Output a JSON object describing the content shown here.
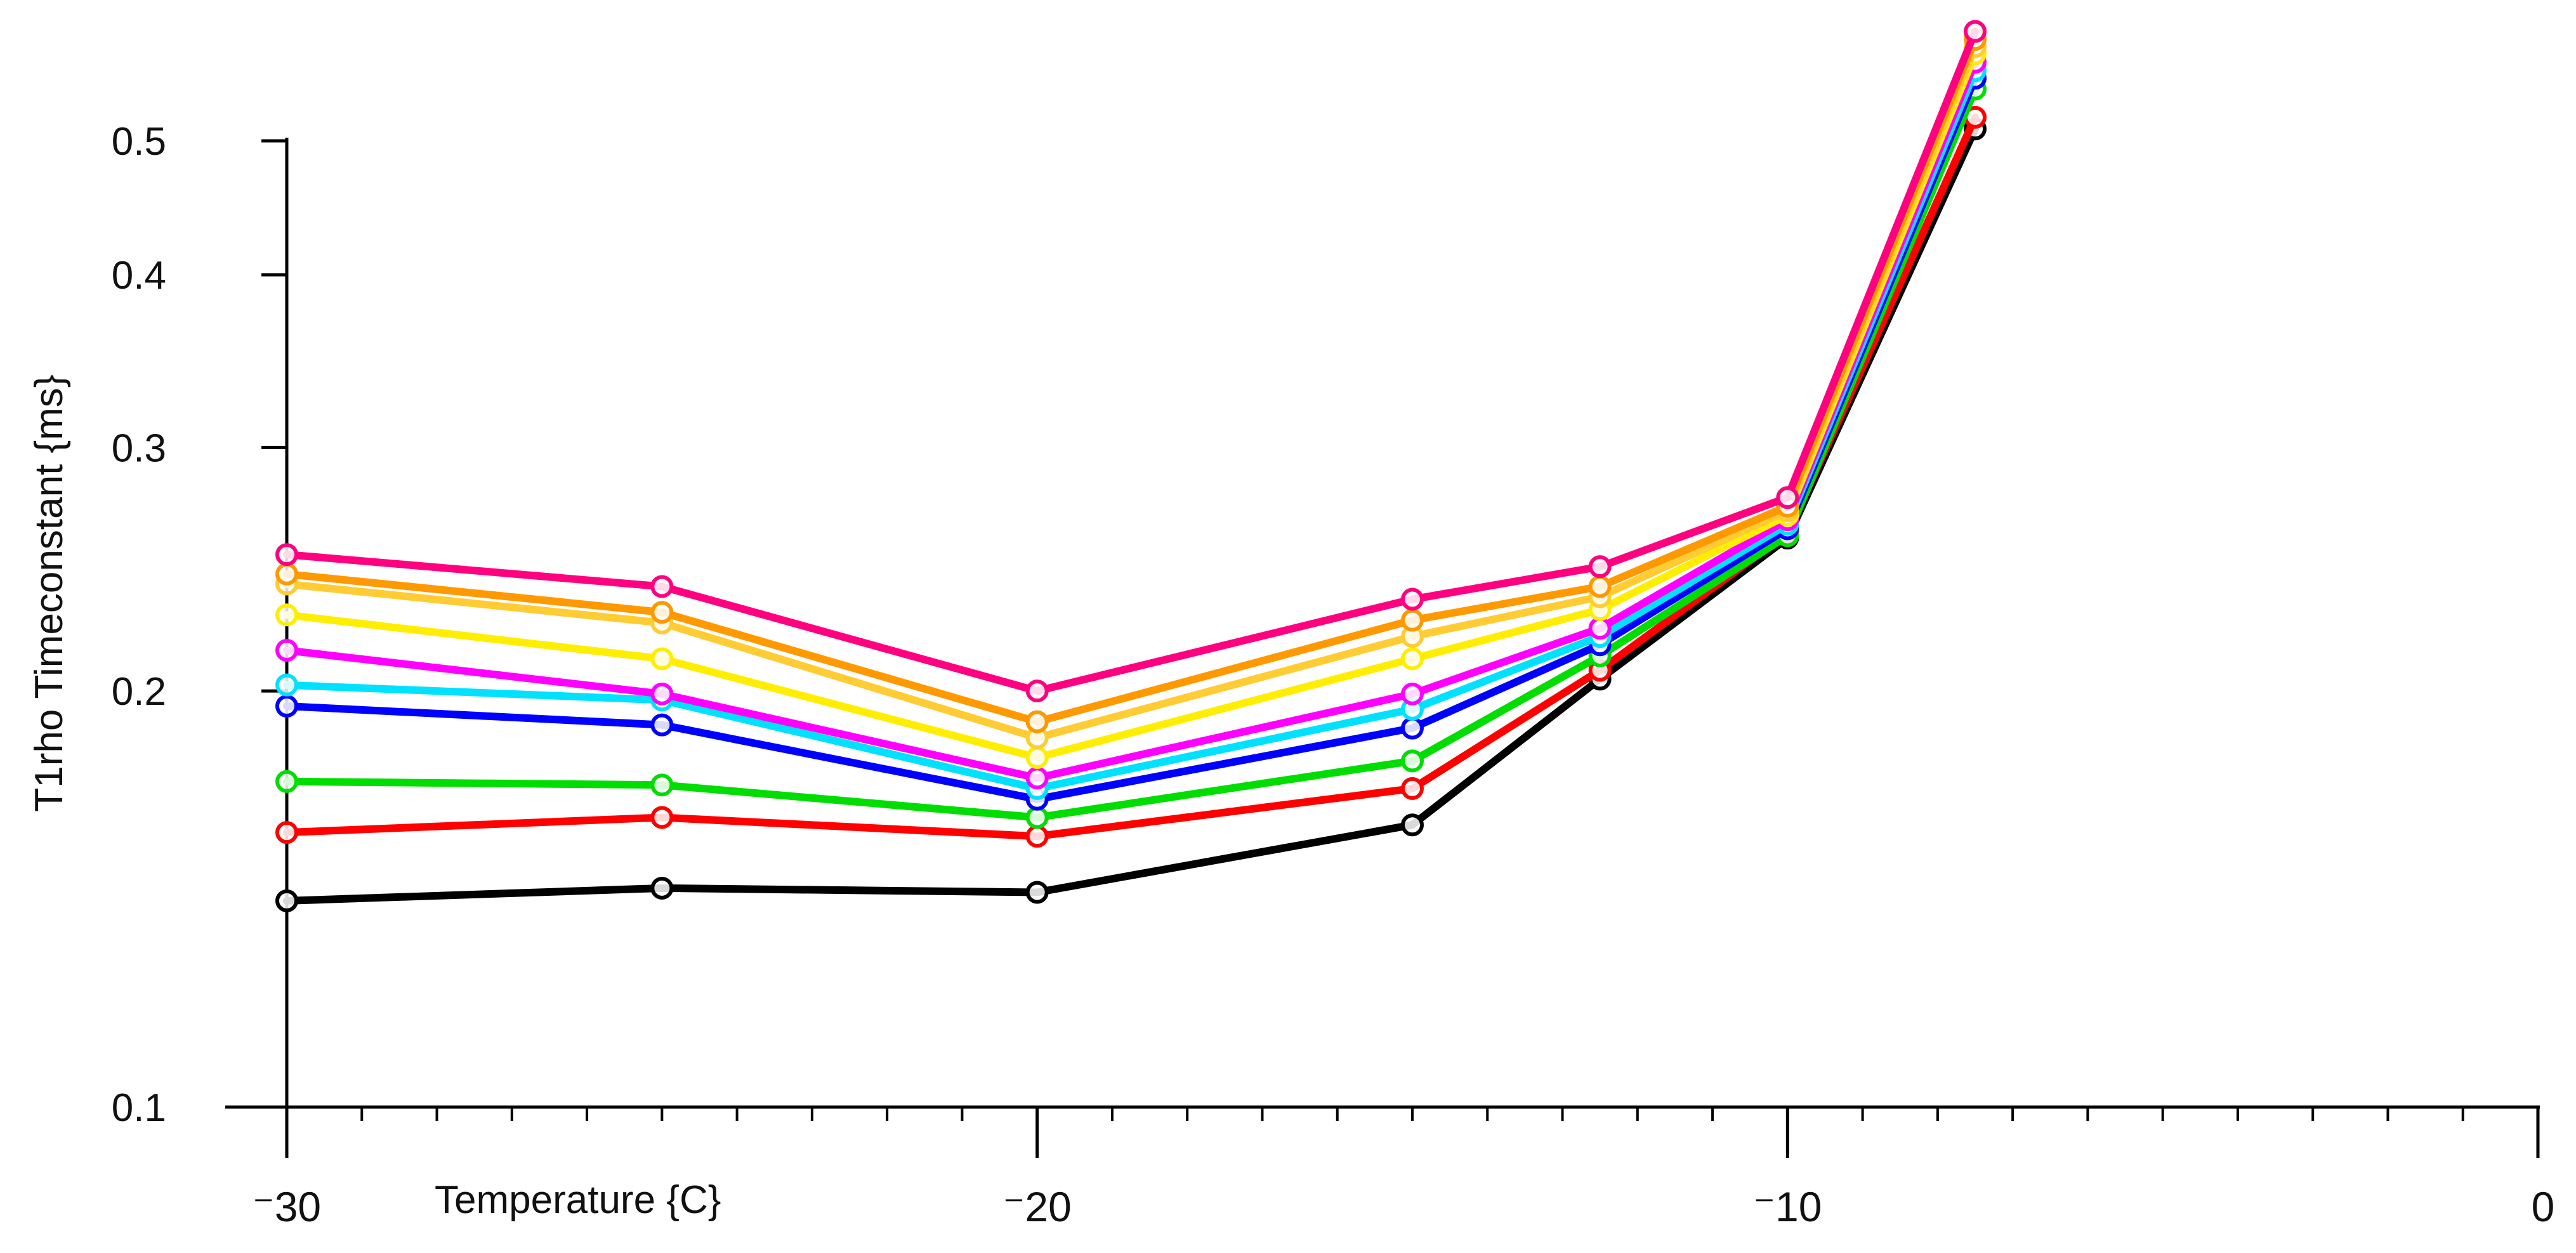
{
  "chart_data": {
    "type": "line",
    "title": "",
    "xlabel": "Temperature {C}",
    "ylabel": "T1rho Timeconstant {ms}",
    "xlim": [
      -30,
      0
    ],
    "ylim": [
      0.1,
      0.5
    ],
    "yscale": "log",
    "grid": false,
    "marker": "open-circle",
    "x": [
      -30,
      -25,
      -20,
      -15,
      -12.5,
      -10,
      -7.5
    ],
    "x_ticks": [
      {
        "value": -30,
        "label": "⁻30"
      },
      {
        "value": -20,
        "label": "⁻20"
      },
      {
        "value": -10,
        "label": "⁻10"
      },
      {
        "value": 0,
        "label": "0"
      }
    ],
    "y_ticks": [
      {
        "value": 0.1,
        "label": "0.1"
      },
      {
        "value": 0.2,
        "label": "0.2"
      },
      {
        "value": 0.3,
        "label": "0.3"
      },
      {
        "value": 0.4,
        "label": "0.4"
      },
      {
        "value": 0.5,
        "label": "0.5"
      }
    ],
    "x_minor_step": 1,
    "series": [
      {
        "color": "#000000",
        "values": [
          0.141,
          0.144,
          0.143,
          0.16,
          0.204,
          0.258,
          0.51
        ]
      },
      {
        "color": "#ff0000",
        "values": [
          0.158,
          0.162,
          0.157,
          0.17,
          0.207,
          0.26,
          0.52
        ]
      },
      {
        "color": "#00dd00",
        "values": [
          0.172,
          0.171,
          0.162,
          0.178,
          0.212,
          0.259,
          0.545
        ]
      },
      {
        "color": "#0000ff",
        "values": [
          0.195,
          0.189,
          0.167,
          0.188,
          0.216,
          0.262,
          0.555
        ]
      },
      {
        "color": "#00e0ff",
        "values": [
          0.202,
          0.197,
          0.17,
          0.194,
          0.219,
          0.264,
          0.562
        ]
      },
      {
        "color": "#ff00ff",
        "values": [
          0.214,
          0.199,
          0.173,
          0.199,
          0.222,
          0.266,
          0.57
        ]
      },
      {
        "color": "#ffee00",
        "values": [
          0.227,
          0.211,
          0.179,
          0.211,
          0.229,
          0.268,
          0.578
        ]
      },
      {
        "color": "#ffcc33",
        "values": [
          0.239,
          0.224,
          0.185,
          0.219,
          0.234,
          0.27,
          0.585
        ]
      },
      {
        "color": "#ff9900",
        "values": [
          0.243,
          0.228,
          0.19,
          0.225,
          0.238,
          0.272,
          0.592
        ]
      },
      {
        "color": "#ff0080",
        "values": [
          0.251,
          0.238,
          0.2,
          0.233,
          0.246,
          0.276,
          0.6
        ]
      }
    ]
  }
}
